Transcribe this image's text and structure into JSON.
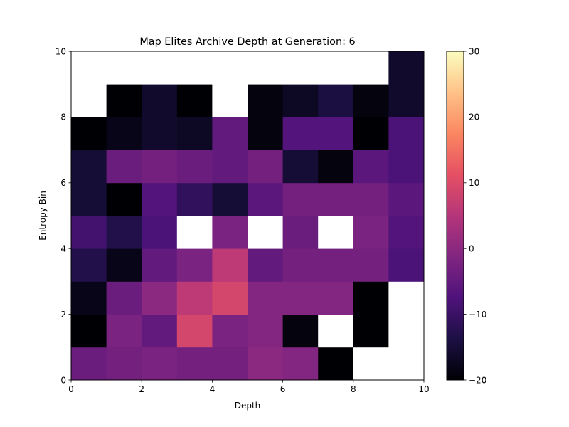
{
  "chart_data": {
    "type": "heatmap",
    "title": "Map Elites Archive Depth at Generation: 6",
    "xlabel": "Depth",
    "ylabel": "Entropy Bin",
    "xlim": [
      0,
      10
    ],
    "ylim": [
      0,
      10
    ],
    "x_ticks": [
      "0",
      "2",
      "4",
      "6",
      "8",
      "10"
    ],
    "y_ticks": [
      "0",
      "2",
      "4",
      "6",
      "8",
      "10"
    ],
    "colormap": "magma",
    "colorbar": {
      "range": [
        -20,
        30
      ],
      "ticks": [
        "−20",
        "−10",
        "0",
        "10",
        "20",
        "30"
      ]
    },
    "grid": false,
    "empty_color": "#ffffff",
    "x_bins": [
      0,
      1,
      2,
      3,
      4,
      5,
      6,
      7,
      8,
      9
    ],
    "y_bins": [
      0,
      1,
      2,
      3,
      4,
      5,
      6,
      7,
      8,
      9
    ],
    "values": [
      [
        -4,
        -3,
        -2,
        -3,
        -3,
        0,
        -1,
        -20,
        null,
        null
      ],
      [
        -20,
        -2,
        -5,
        9,
        -2,
        -1,
        -19,
        null,
        -20,
        null
      ],
      [
        -18,
        -4,
        0,
        6,
        9,
        -1,
        -1,
        -1,
        -20,
        null
      ],
      [
        -13,
        -18,
        -5,
        -2,
        6,
        -5,
        -3,
        -3,
        -3,
        -8
      ],
      [
        -9,
        -13,
        -8,
        null,
        -2,
        null,
        -4,
        null,
        -2,
        -7
      ],
      [
        -15,
        -20,
        -7,
        -11,
        -15,
        -6,
        -3,
        -3,
        -3,
        -6
      ],
      [
        -15,
        -4,
        -3,
        -4,
        -5,
        -3,
        -15,
        -19,
        -6,
        -8
      ],
      [
        -20,
        -18,
        -16,
        -17,
        -5,
        -19,
        -7,
        -7,
        -20,
        -8
      ],
      [
        null,
        -20,
        -16,
        -20,
        null,
        -19,
        -17,
        -14,
        -19,
        -16
      ],
      [
        null,
        null,
        null,
        null,
        null,
        null,
        null,
        null,
        null,
        -16
      ]
    ]
  }
}
